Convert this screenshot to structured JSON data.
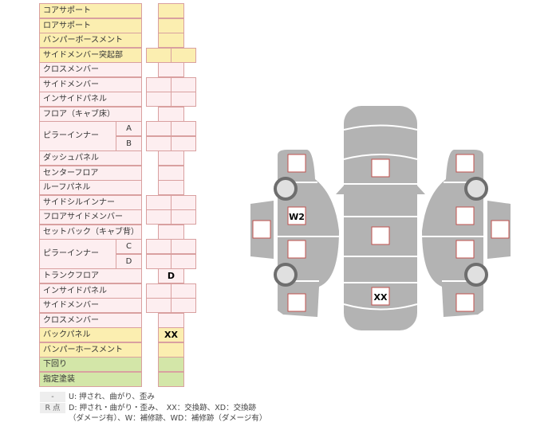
{
  "colors": {
    "yellow": "#fbeeb0",
    "pink": "#fdeef0",
    "green": "#d3e6a8",
    "border": "#d9a0a0",
    "car": "#b3b3b3",
    "box_border": "#c0504d"
  },
  "rows": [
    {
      "label": "コアサポート",
      "color": "yellow",
      "cells": "single",
      "value": ""
    },
    {
      "label": "ロアサポート",
      "color": "yellow",
      "cells": "single",
      "value": ""
    },
    {
      "label": "バンパーボースメント",
      "color": "yellow",
      "cells": "single",
      "value": ""
    },
    {
      "label": "サイドメンバー突起部",
      "color": "yellow",
      "cells": "double",
      "value": ""
    },
    {
      "label": "クロスメンバー",
      "color": "pink",
      "cells": "single",
      "value": ""
    },
    {
      "label": "サイドメンバー",
      "color": "pink",
      "cells": "double",
      "value": ""
    },
    {
      "label": "インサイドパネル",
      "color": "pink",
      "cells": "double",
      "value": ""
    },
    {
      "label": "フロア（キャブ床）",
      "color": "pink",
      "cells": "single",
      "value": ""
    },
    {
      "label": "ピラーインナー",
      "subs": [
        "A",
        "B"
      ],
      "color": "pink",
      "cells": "double",
      "value": ""
    },
    {
      "label": "ダッシュパネル",
      "color": "pink",
      "cells": "single",
      "value": ""
    },
    {
      "label": "センターフロア",
      "color": "pink",
      "cells": "single",
      "value": ""
    },
    {
      "label": "ルーフパネル",
      "color": "pink",
      "cells": "single",
      "value": ""
    },
    {
      "label": "サイドシルインナー",
      "color": "pink",
      "cells": "double",
      "value": ""
    },
    {
      "label": "フロアサイドメンバー",
      "color": "pink",
      "cells": "double",
      "value": ""
    },
    {
      "label": "セットバック（キャブ背）",
      "color": "pink",
      "cells": "single",
      "value": ""
    },
    {
      "label": "ピラーインナー",
      "subs": [
        "C",
        "D"
      ],
      "color": "pink",
      "cells": "double",
      "value": ""
    },
    {
      "label": "トランクフロア",
      "color": "pink",
      "cells": "single",
      "value": "D"
    },
    {
      "label": "インサイドパネル",
      "color": "pink",
      "cells": "double",
      "value": ""
    },
    {
      "label": "サイドメンバー",
      "color": "pink",
      "cells": "double",
      "value": ""
    },
    {
      "label": "クロスメンバー",
      "color": "pink",
      "cells": "single",
      "value": ""
    },
    {
      "label": "バックパネル",
      "color": "yellow",
      "cells": "single",
      "value": "XX"
    },
    {
      "label": "バンパーホースメント",
      "color": "yellow",
      "cells": "single",
      "value": ""
    },
    {
      "label": "下回り",
      "color": "green",
      "cells": "single",
      "value": ""
    },
    {
      "label": "指定塗装",
      "color": "green",
      "cells": "single",
      "value": ""
    }
  ],
  "diagram": {
    "left_mark": "W2",
    "center_mark": "XX"
  },
  "legend": {
    "key1": "-",
    "text1": "U: 押され、曲がり、歪み",
    "key2": "R 点",
    "text2": "D: 押され・曲がり・歪み、　XX：交換跡、XD：交換跡",
    "text3": "（ダメージ有）、W：補修跡、WD：補修跡（ダメージ有）"
  }
}
